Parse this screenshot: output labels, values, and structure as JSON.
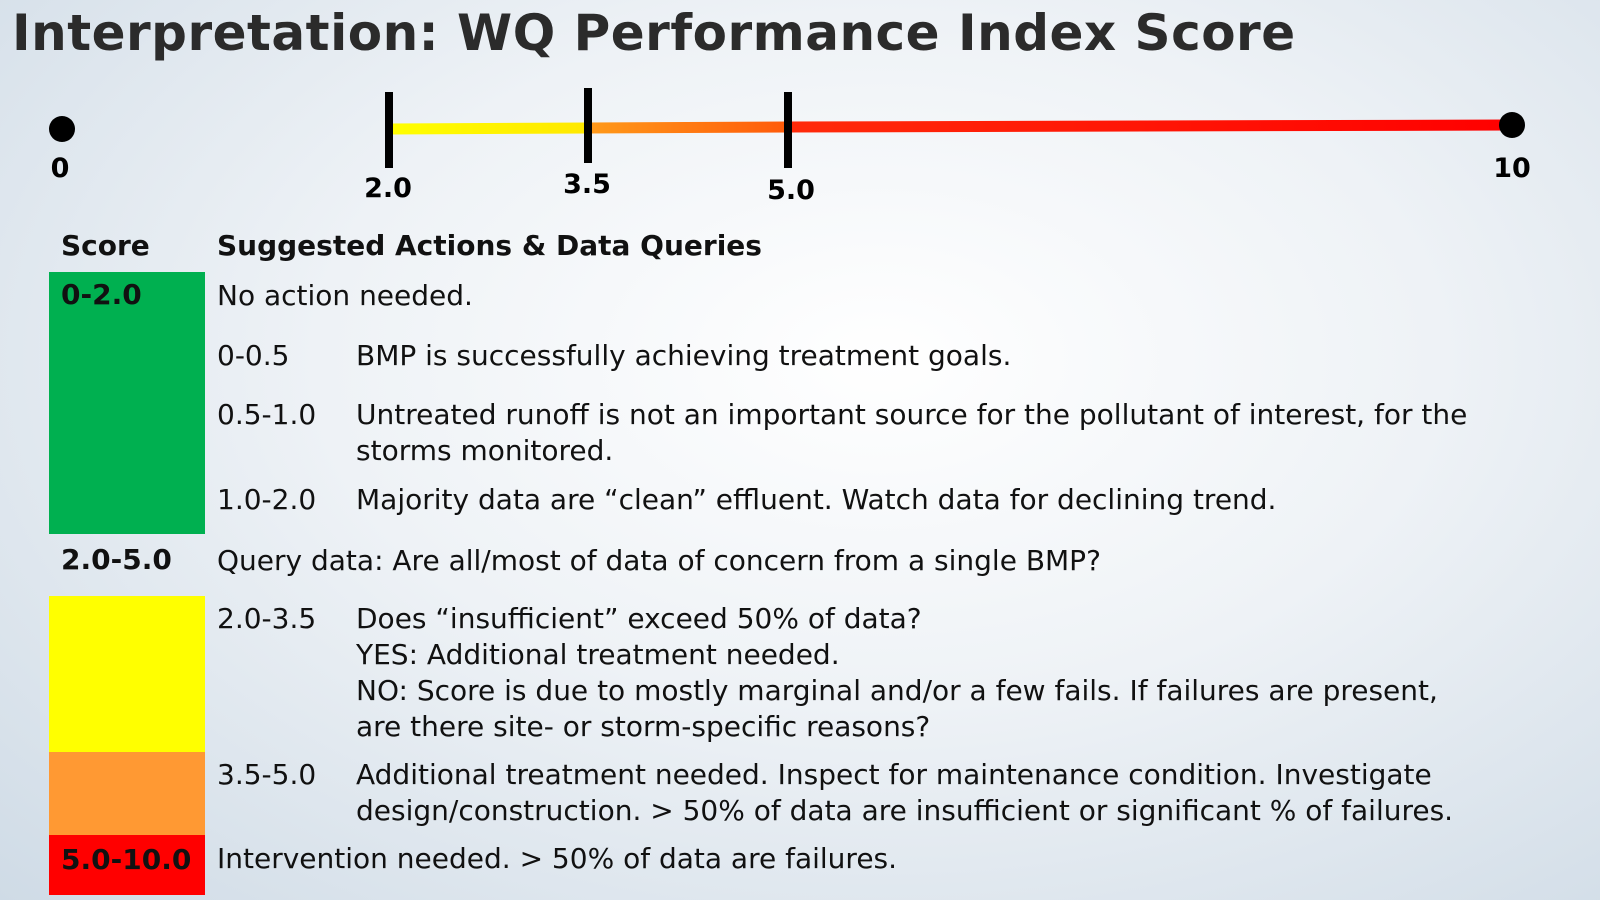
{
  "title": "Interpretation: WQ Performance Index Score",
  "scale": {
    "ticks": [
      {
        "value": "0",
        "type": "endpoint"
      },
      {
        "value": "2.0",
        "type": "bar"
      },
      {
        "value": "3.5",
        "type": "bar"
      },
      {
        "value": "5.0",
        "type": "bar"
      },
      {
        "value": "10",
        "type": "endpoint"
      }
    ],
    "segments": [
      {
        "from": 0,
        "to": 2.0,
        "colors": [
          "#1aa64a",
          "#22b14c"
        ]
      },
      {
        "from": 2.0,
        "to": 3.5,
        "colors": [
          "#ffff00",
          "#fff000"
        ]
      },
      {
        "from": 3.5,
        "to": 5.0,
        "colors": [
          "#ff9a1a",
          "#ff6a0a"
        ]
      },
      {
        "from": 5.0,
        "to": 10,
        "colors": [
          "#ff2a0a",
          "#ff0000"
        ]
      }
    ]
  },
  "table": {
    "header_score": "Score",
    "header_actions": "Suggested Actions & Data Queries",
    "bands": [
      {
        "label": "0-2.0",
        "color": "#00b050",
        "text": "No action needed."
      },
      {
        "label": "2.0-5.0",
        "color": "",
        "text": "Query data: Are all/most of data of concern from a single BMP?"
      },
      {
        "label": "5.0-10.0",
        "color": "#ff0000",
        "text": "Intervention needed. > 50% of data are failures."
      }
    ],
    "rows": [
      {
        "range": "0-0.5",
        "lines": [
          "BMP is successfully achieving treatment goals."
        ]
      },
      {
        "range": "0.5-1.0",
        "lines": [
          "Untreated runoff is not an important source for the pollutant of interest, for the",
          "storms monitored."
        ]
      },
      {
        "range": "1.0-2.0",
        "lines": [
          "Majority data are “clean” effluent. Watch data for declining trend."
        ]
      },
      {
        "range": "2.0-3.5",
        "lines": [
          "Does “insufficient” exceed 50% of data?",
          "YES: Additional treatment needed.",
          "NO: Score is due to mostly marginal and/or a few fails. If failures are present,",
          "are there site- or storm-specific reasons?"
        ]
      },
      {
        "range": "3.5-5.0",
        "lines": [
          "Additional treatment needed. Inspect for maintenance condition. Investigate",
          "design/construction. > 50% of data are insufficient or significant % of failures."
        ]
      }
    ],
    "swatch_colors": {
      "green": "#00b050",
      "yellow": "#ffff00",
      "orange": "#ff9933",
      "red": "#ff0000"
    }
  }
}
